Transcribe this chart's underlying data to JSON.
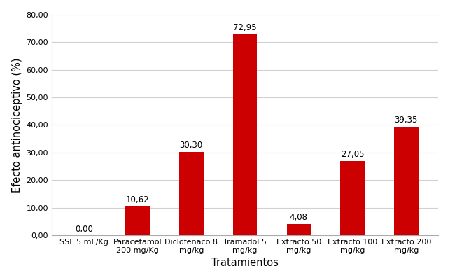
{
  "categories": [
    "SSF 5 mL/Kg",
    "Paracetamol\n200 mg/Kg",
    "Diclofenaco 8\nmg/kg",
    "Tramadol 5\nmg/kg",
    "Extracto 50\nmg/kg",
    "Extracto 100\nmg/kg",
    "Extracto 200\nmg/kg"
  ],
  "values": [
    0.0,
    10.62,
    30.3,
    72.95,
    4.08,
    27.05,
    39.35
  ],
  "value_labels": [
    "0,00",
    "10,62",
    "30,30",
    "72,95",
    "4,08",
    "27,05",
    "39,35"
  ],
  "bar_color": "#CC0000",
  "xlabel": "Tratamientos",
  "ylabel": "Efecto antinociceptivo (%)",
  "ylim": [
    0,
    80
  ],
  "yticks": [
    0,
    10,
    20,
    30,
    40,
    50,
    60,
    70,
    80
  ],
  "ytick_labels": [
    "0,00",
    "10,00",
    "20,00",
    "30,00",
    "40,00",
    "50,00",
    "60,00",
    "70,00",
    "80,00"
  ],
  "background_color": "#ffffff",
  "grid_color": "#d0d0d0",
  "bar_width": 0.45,
  "label_fontsize": 8.5,
  "tick_fontsize": 8.0,
  "axis_label_fontsize": 10.5
}
